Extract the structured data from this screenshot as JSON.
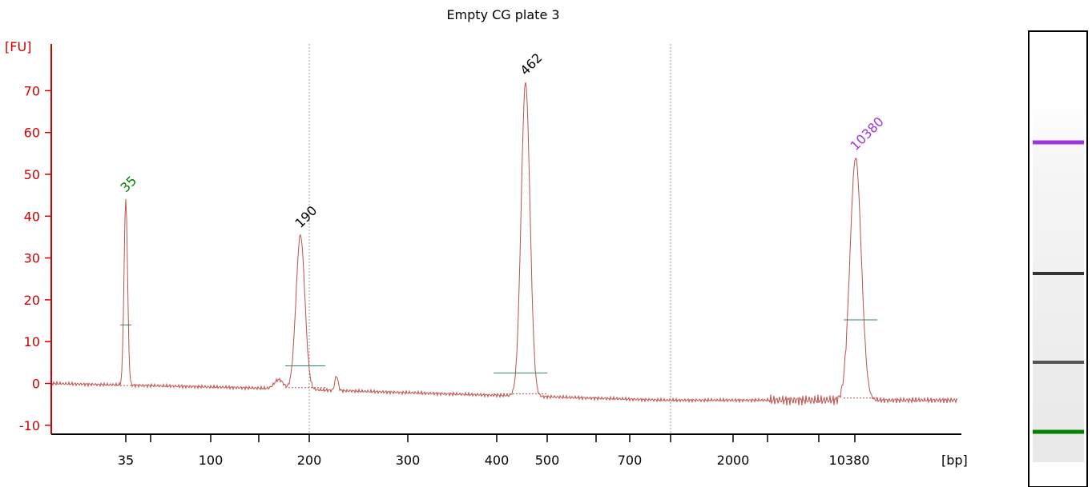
{
  "chart_data": {
    "type": "line",
    "title": "Empty CG plate 3",
    "y_unit": "[FU]",
    "x_unit": "[bp]",
    "y_ticks": [
      -10,
      0,
      10,
      20,
      30,
      40,
      50,
      60,
      70
    ],
    "ylim": [
      -12,
      80
    ],
    "x_tick_labels": [
      "35",
      "100",
      "200",
      "300",
      "400",
      "500",
      "700",
      "2000",
      "10380"
    ],
    "grid": false,
    "series": [
      {
        "x": [
          "35",
          "190",
          "462",
          "10380"
        ],
        "y": [
          44,
          35.5,
          72,
          54
        ],
        "peak_colors": [
          "#008000",
          "#000000",
          "#000000",
          "#a035e0"
        ]
      }
    ],
    "peaks": [
      {
        "label": "35",
        "size_bp": 35,
        "height": 44,
        "color": "#008000"
      },
      {
        "label": "190",
        "size_bp": 190,
        "height": 35.5,
        "color": "#000000"
      },
      {
        "label": "462",
        "size_bp": 462,
        "height": 72,
        "color": "#000000"
      },
      {
        "label": "10380",
        "size_bp": 10380,
        "height": 54,
        "color": "#a035e0"
      }
    ],
    "baseline_trend": [
      0,
      -1,
      -2.5,
      -4,
      -4
    ],
    "colors": {
      "axis": "#d00000",
      "trace": "#c0504d",
      "lower_marker": "#008000",
      "upper_marker": "#a035e0"
    }
  },
  "gel_lane": {
    "bands": [
      {
        "label": "10380",
        "color": "#a035e0"
      },
      {
        "label": "462",
        "color": "#333333"
      },
      {
        "label": "190",
        "color": "#555555"
      },
      {
        "label": "35",
        "color": "#008000"
      }
    ]
  }
}
